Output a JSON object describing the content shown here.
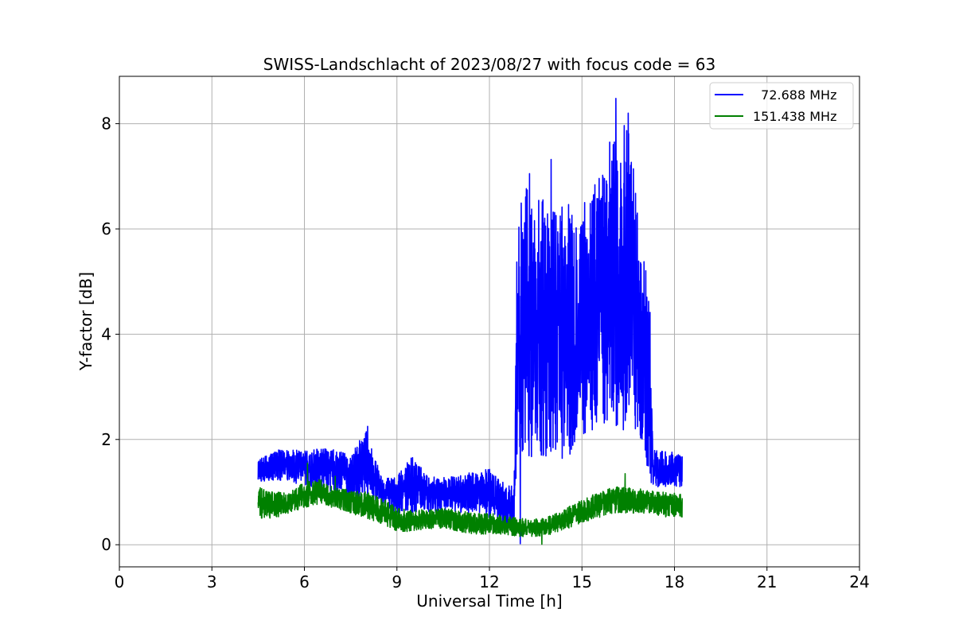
{
  "chart_data": {
    "type": "line",
    "title": "SWISS-Landschlacht of 2023/08/27 with focus code = 63",
    "xlabel": "Universal Time [h]",
    "ylabel": "Y-factor [dB]",
    "xlim": [
      0,
      24
    ],
    "ylim": [
      -0.42,
      8.9
    ],
    "xticks": [
      0,
      3,
      6,
      9,
      12,
      15,
      18,
      21,
      24
    ],
    "yticks": [
      0,
      2,
      4,
      6,
      8
    ],
    "grid": true,
    "legend_position": "top-right",
    "series": [
      {
        "name": "72.688 MHz",
        "legend_label": "  72.688 MHz",
        "color": "#0000ff",
        "x_start": 4.5,
        "x_end": 18.25,
        "envelope": [
          [
            4.5,
            1.2,
            1.6
          ],
          [
            5.0,
            1.2,
            1.8
          ],
          [
            5.5,
            1.2,
            1.8
          ],
          [
            6.0,
            1.1,
            1.8
          ],
          [
            6.5,
            1.0,
            1.85
          ],
          [
            7.0,
            1.0,
            1.8
          ],
          [
            7.5,
            0.9,
            1.7
          ],
          [
            8.0,
            0.9,
            2.2
          ],
          [
            8.5,
            0.8,
            1.3
          ],
          [
            9.0,
            0.6,
            1.3
          ],
          [
            9.5,
            0.6,
            1.7
          ],
          [
            10.0,
            0.6,
            1.3
          ],
          [
            10.5,
            0.6,
            1.3
          ],
          [
            11.0,
            0.6,
            1.3
          ],
          [
            11.5,
            0.6,
            1.4
          ],
          [
            12.0,
            0.5,
            1.45
          ],
          [
            12.5,
            0.3,
            1.2
          ],
          [
            12.8,
            0.2,
            1.1
          ],
          [
            12.9,
            1.8,
            6.0
          ],
          [
            13.0,
            1.8,
            7.0
          ],
          [
            13.5,
            1.6,
            6.6
          ],
          [
            14.0,
            1.6,
            6.5
          ],
          [
            14.5,
            1.6,
            6.5
          ],
          [
            15.0,
            2.0,
            6.6
          ],
          [
            15.5,
            2.2,
            7.0
          ],
          [
            16.0,
            2.2,
            7.6
          ],
          [
            16.5,
            2.0,
            8.2
          ],
          [
            16.9,
            2.0,
            5.9
          ],
          [
            17.2,
            1.2,
            4.9
          ],
          [
            17.3,
            1.1,
            1.8
          ],
          [
            17.8,
            1.1,
            1.8
          ],
          [
            18.25,
            1.1,
            1.7
          ]
        ],
        "spikes": [
          [
            16.1,
            8.48
          ],
          [
            16.5,
            8.2
          ],
          [
            13.3,
            7.05
          ],
          [
            14.0,
            7.32
          ],
          [
            15.9,
            7.65
          ],
          [
            8.05,
            2.25
          ],
          [
            13.0,
            0.02
          ]
        ]
      },
      {
        "name": "151.438 MHz",
        "legend_label": "151.438 MHz",
        "color": "#008000",
        "x_start": 4.5,
        "x_end": 18.25,
        "envelope": [
          [
            4.5,
            0.5,
            1.1
          ],
          [
            5.0,
            0.5,
            1.0
          ],
          [
            5.5,
            0.6,
            1.0
          ],
          [
            6.0,
            0.7,
            1.2
          ],
          [
            6.5,
            0.75,
            1.25
          ],
          [
            7.0,
            0.7,
            1.1
          ],
          [
            7.5,
            0.6,
            1.05
          ],
          [
            8.0,
            0.5,
            1.0
          ],
          [
            8.5,
            0.4,
            0.9
          ],
          [
            9.0,
            0.25,
            0.7
          ],
          [
            9.5,
            0.25,
            0.65
          ],
          [
            10.0,
            0.3,
            0.7
          ],
          [
            10.5,
            0.3,
            0.7
          ],
          [
            11.0,
            0.25,
            0.65
          ],
          [
            11.5,
            0.2,
            0.6
          ],
          [
            12.0,
            0.2,
            0.6
          ],
          [
            12.5,
            0.2,
            0.55
          ],
          [
            13.0,
            0.15,
            0.5
          ],
          [
            13.5,
            0.15,
            0.5
          ],
          [
            14.0,
            0.2,
            0.55
          ],
          [
            14.5,
            0.3,
            0.7
          ],
          [
            15.0,
            0.4,
            0.85
          ],
          [
            15.5,
            0.5,
            1.0
          ],
          [
            16.0,
            0.6,
            1.1
          ],
          [
            16.5,
            0.6,
            1.1
          ],
          [
            17.0,
            0.6,
            1.05
          ],
          [
            17.5,
            0.55,
            1.0
          ],
          [
            18.0,
            0.5,
            1.0
          ],
          [
            18.25,
            0.5,
            0.95
          ]
        ],
        "spikes": [
          [
            6.1,
            1.55
          ],
          [
            16.4,
            1.35
          ],
          [
            7.0,
            1.3
          ],
          [
            13.7,
            0.01
          ]
        ]
      }
    ]
  }
}
